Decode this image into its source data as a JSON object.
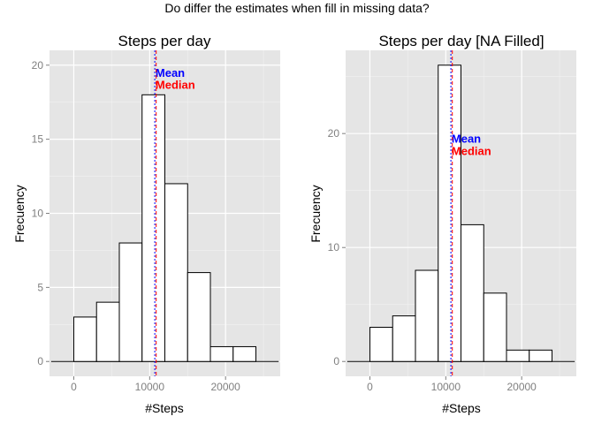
{
  "figure": {
    "title": "Do differ the estimates when fill in missing data?"
  },
  "chart_data": [
    {
      "type": "bar",
      "title": "Steps per day",
      "xlabel": "#Steps",
      "ylabel": "Frecuency",
      "xlim": [
        -3200,
        27200
      ],
      "ylim": [
        -1,
        21
      ],
      "x_ticks": [
        0,
        10000,
        20000
      ],
      "y_ticks": [
        0,
        5,
        10,
        15,
        20
      ],
      "bin_width": 3000,
      "bins": [
        {
          "start": 0,
          "end": 3000,
          "count": 3
        },
        {
          "start": 3000,
          "end": 6000,
          "count": 4
        },
        {
          "start": 6000,
          "end": 9000,
          "count": 8
        },
        {
          "start": 9000,
          "end": 12000,
          "count": 18
        },
        {
          "start": 12000,
          "end": 15000,
          "count": 12
        },
        {
          "start": 15000,
          "end": 18000,
          "count": 6
        },
        {
          "start": 18000,
          "end": 21000,
          "count": 1
        },
        {
          "start": 21000,
          "end": 24000,
          "count": 1
        }
      ],
      "baseline": {
        "from": -3000,
        "to": 27000
      },
      "reference_lines": [
        {
          "label": "Mean",
          "value": 10766,
          "color": "#0000ff",
          "label_y": 19.5
        },
        {
          "label": "Median",
          "value": 10765,
          "color": "#ff0000",
          "label_y": 18.7
        }
      ],
      "grid": true,
      "background": "#e5e5e5"
    },
    {
      "type": "bar",
      "title": "Steps per day [NA Filled]",
      "xlabel": "#Steps",
      "ylabel": "Frecuency",
      "xlim": [
        -3200,
        27200
      ],
      "ylim": [
        -1.3,
        27.3
      ],
      "x_ticks": [
        0,
        10000,
        20000
      ],
      "y_ticks": [
        0,
        10,
        20
      ],
      "bin_width": 3000,
      "bins": [
        {
          "start": 0,
          "end": 3000,
          "count": 3
        },
        {
          "start": 3000,
          "end": 6000,
          "count": 4
        },
        {
          "start": 6000,
          "end": 9000,
          "count": 8
        },
        {
          "start": 9000,
          "end": 12000,
          "count": 26
        },
        {
          "start": 12000,
          "end": 15000,
          "count": 12
        },
        {
          "start": 15000,
          "end": 18000,
          "count": 6
        },
        {
          "start": 18000,
          "end": 21000,
          "count": 1
        },
        {
          "start": 21000,
          "end": 24000,
          "count": 1
        }
      ],
      "baseline": {
        "from": -3000,
        "to": 27000
      },
      "reference_lines": [
        {
          "label": "Mean",
          "value": 10766,
          "color": "#0000ff",
          "label_y": 19.6
        },
        {
          "label": "Median",
          "value": 10766,
          "color": "#ff0000",
          "label_y": 18.5
        }
      ],
      "grid": true,
      "background": "#e5e5e5"
    }
  ]
}
